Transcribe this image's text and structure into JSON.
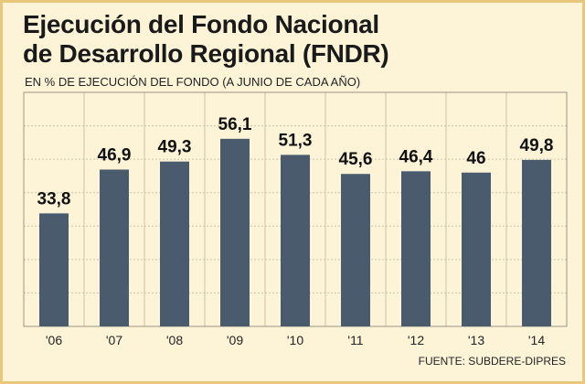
{
  "chart_data": {
    "type": "bar",
    "title": "Ejecución del Fondo Nacional de Desarrollo Regional (FNDR)",
    "title_lines": [
      "Ejecución del Fondo Nacional",
      "de Desarrollo Regional (FNDR)"
    ],
    "subtitle": "EN % DE EJECUCIÓN DEL FONDO (A JUNIO DE CADA AÑO)",
    "categories": [
      "'06",
      "'07",
      "'08",
      "'09",
      "'10",
      "'11",
      "'12",
      "'13",
      "'14"
    ],
    "values": [
      33.8,
      46.9,
      49.3,
      56.1,
      51.3,
      45.6,
      46.4,
      46,
      49.8
    ],
    "value_labels": [
      "33,8",
      "46,9",
      "49,3",
      "56,1",
      "51,3",
      "45,6",
      "46,4",
      "46",
      "49,8"
    ],
    "ylim": [
      0,
      70
    ],
    "grid": true,
    "source": "FUENTE: SUBDERE-DIPRES",
    "colors": {
      "background": "#fdf4d8",
      "border": "#e9c77d",
      "bar": "#4a5b6e",
      "grid": "#c9c1aa",
      "plot_border": "#9a9486"
    }
  }
}
